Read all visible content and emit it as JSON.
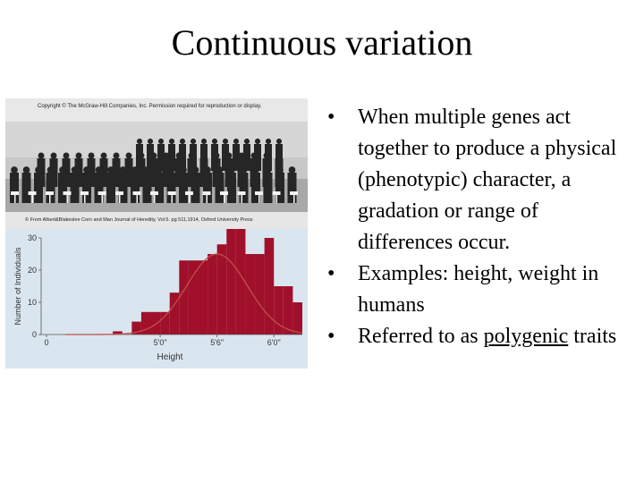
{
  "slide": {
    "title": "Continuous variation"
  },
  "figure": {
    "copyright_top": "Copyright © The McGraw-Hill Companies, Inc. Permission required for reproduction or display.",
    "copyright_bottom": "© From Albert&Blakeslee Corn and Man Journal of Heredity, Vol.5. pg 511,1914, Oxford University Press"
  },
  "bullets": [
    {
      "text": "When multiple genes act together to produce a physical (phenotypic) character, a gradation or range of differences occur."
    },
    {
      "text": "Examples:  height, weight in humans"
    },
    {
      "text_before": "Referred to as ",
      "underlined": "polygenic",
      "text_after": " traits"
    }
  ],
  "colors": {
    "bars": "#a0102a",
    "curve_fill": "#f2c4c0",
    "curve_line": "#c0504d",
    "panel_bg": "#d9e6ef"
  },
  "chart_data": {
    "type": "bar",
    "xlabel": "Height",
    "ylabel": "Number of Individuals",
    "ylim": [
      0,
      30
    ],
    "yticks": [
      "0",
      "10",
      "20",
      "30"
    ],
    "x_tick_labels": [
      {
        "x": 48,
        "label": "0"
      },
      {
        "x": 60,
        "label": "5'0\""
      },
      {
        "x": 66,
        "label": "5'6\""
      },
      {
        "x": 72,
        "label": "6'0\""
      }
    ],
    "xlim": [
      48,
      75
    ],
    "bars": {
      "x_start": [
        55,
        56,
        57,
        58,
        59,
        60,
        61,
        62,
        63,
        64,
        65,
        66,
        67,
        68,
        69,
        70,
        71,
        72,
        73,
        74
      ],
      "bin_width": 1,
      "values": [
        1,
        0,
        4,
        7,
        7,
        7,
        13,
        23,
        23,
        23,
        25,
        28,
        33,
        33,
        25,
        25,
        30,
        15,
        15,
        10
      ]
    },
    "curve": {
      "mean": 66,
      "peak": 25,
      "sd": 3.2
    }
  }
}
